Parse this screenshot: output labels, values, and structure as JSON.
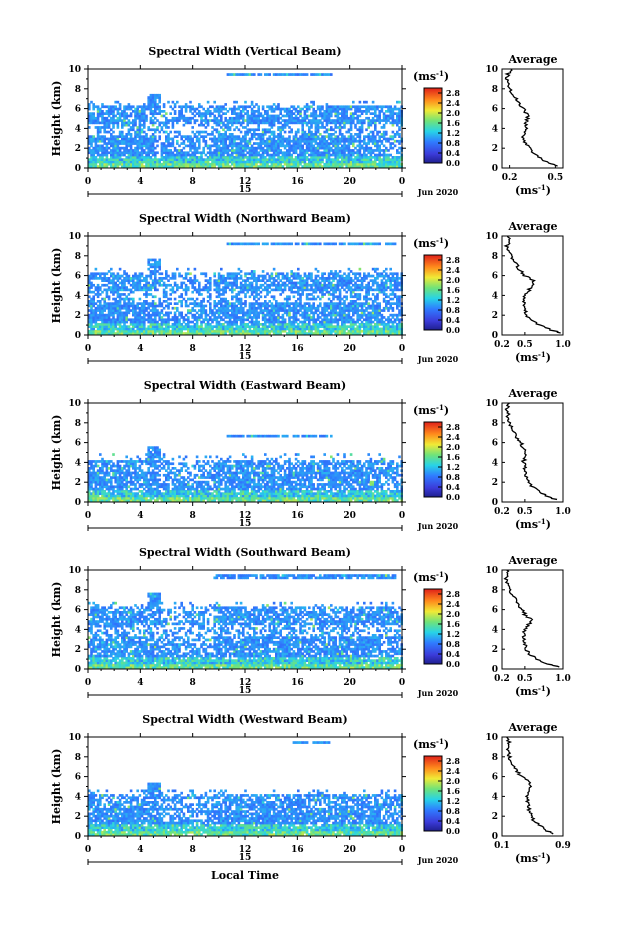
{
  "figure": {
    "xlabel": "Local Time",
    "date_label": "Jun 2020",
    "colorbar_unit_prefix": "(ms",
    "colorbar_unit_exp": "-1",
    "colorbar_unit_suffix": ")",
    "colorbar_ticks": [
      "2.8",
      "2.4",
      "2.0",
      "1.6",
      "1.2",
      "0.8",
      "0.4",
      "0.0"
    ],
    "profile_title": "Average",
    "profile_xlabel_prefix": "(ms",
    "profile_xlabel_exp": "-1",
    "profile_xlabel_suffix": ")"
  },
  "chart_data": [
    {
      "type": "heatmap",
      "title": "Spectral Width (Vertical Beam)",
      "xlabel": "Local Time",
      "ylabel": "Height (km)",
      "xticks": [
        "0",
        "4",
        "8",
        "12",
        "16",
        "20",
        "0"
      ],
      "yticks": [
        "0",
        "2",
        "4",
        "6",
        "8",
        "10"
      ],
      "xlim": [
        0,
        24
      ],
      "ylim": [
        0,
        10
      ],
      "day_label": "15",
      "date_label": "Jun 2020",
      "colorbar": {
        "min": 0.0,
        "max": 3.0,
        "ticks": [
          0.0,
          0.4,
          0.8,
          1.2,
          1.6,
          2.0,
          2.4,
          2.8
        ],
        "unit": "ms-1"
      },
      "cloud_top_km": 6.1,
      "upper_layer": {
        "start_h": 10.5,
        "end_h": 18.5,
        "height_km": 9.4
      },
      "average_profile": {
        "title": "Average",
        "xticks": [
          "0.2",
          "0.5"
        ],
        "xlim": [
          0.15,
          0.55
        ],
        "ylim": [
          0,
          10
        ],
        "yticks": [
          "0",
          "2",
          "4",
          "6",
          "8",
          "10"
        ],
        "height_km": [
          0.2,
          0.5,
          1.0,
          1.5,
          2.0,
          2.5,
          3.0,
          3.5,
          4.0,
          4.5,
          5.0,
          5.5,
          6.0,
          6.5,
          7.0,
          7.5,
          8.0,
          8.5,
          9.0,
          9.5,
          10.0
        ],
        "value": [
          0.52,
          0.46,
          0.4,
          0.36,
          0.33,
          0.3,
          0.29,
          0.3,
          0.31,
          0.3,
          0.32,
          0.31,
          0.29,
          0.26,
          0.24,
          0.22,
          0.2,
          0.19,
          0.18,
          0.19,
          0.21
        ]
      }
    },
    {
      "type": "heatmap",
      "title": "Spectral Width (Northward Beam)",
      "xlabel": "Local Time",
      "ylabel": "Height (km)",
      "xticks": [
        "0",
        "4",
        "8",
        "12",
        "16",
        "20",
        "0"
      ],
      "yticks": [
        "0",
        "2",
        "4",
        "6",
        "8",
        "10"
      ],
      "xlim": [
        0,
        24
      ],
      "ylim": [
        0,
        10
      ],
      "day_label": "15",
      "date_label": "Jun 2020",
      "colorbar": {
        "min": 0.0,
        "max": 3.0,
        "ticks": [
          0.0,
          0.4,
          0.8,
          1.2,
          1.6,
          2.0,
          2.4,
          2.8
        ],
        "unit": "ms-1"
      },
      "cloud_top_km": 6.2,
      "upper_layer": {
        "start_h": 10.5,
        "end_h": 23.5,
        "height_km": 9.1
      },
      "average_profile": {
        "title": "Average",
        "xticks": [
          "0.2",
          "0.5",
          "1.0"
        ],
        "xlim": [
          0.2,
          1.0
        ],
        "ylim": [
          0,
          10
        ],
        "yticks": [
          "0",
          "2",
          "4",
          "6",
          "8",
          "10"
        ],
        "height_km": [
          0.2,
          0.5,
          1.0,
          1.5,
          2.0,
          2.5,
          3.0,
          3.5,
          4.0,
          4.5,
          5.0,
          5.5,
          6.0,
          6.5,
          7.0,
          7.5,
          8.0,
          8.5,
          9.0,
          9.5,
          10.0
        ],
        "value": [
          0.98,
          0.85,
          0.7,
          0.58,
          0.52,
          0.5,
          0.49,
          0.48,
          0.5,
          0.55,
          0.6,
          0.62,
          0.5,
          0.44,
          0.4,
          0.36,
          0.32,
          0.28,
          0.26,
          0.3,
          0.27
        ]
      }
    },
    {
      "type": "heatmap",
      "title": "Spectral Width (Eastward Beam)",
      "xlabel": "Local Time",
      "ylabel": "Height (km)",
      "xticks": [
        "0",
        "4",
        "8",
        "12",
        "16",
        "20",
        "0"
      ],
      "yticks": [
        "0",
        "2",
        "4",
        "6",
        "8",
        "10"
      ],
      "xlim": [
        0,
        24
      ],
      "ylim": [
        0,
        10
      ],
      "day_label": "15",
      "date_label": "Jun 2020",
      "colorbar": {
        "min": 0.0,
        "max": 3.0,
        "ticks": [
          0.0,
          0.4,
          0.8,
          1.2,
          1.6,
          2.0,
          2.4,
          2.8
        ],
        "unit": "ms-1"
      },
      "cloud_top_km": 4.2,
      "upper_layer": {
        "start_h": 10.5,
        "end_h": 18.5,
        "height_km": 6.5
      },
      "average_profile": {
        "title": "Average",
        "xticks": [
          "0.2",
          "0.5",
          "1.0"
        ],
        "xlim": [
          0.2,
          1.0
        ],
        "ylim": [
          0,
          10
        ],
        "yticks": [
          "0",
          "2",
          "4",
          "6",
          "8",
          "10"
        ],
        "height_km": [
          0.2,
          0.5,
          1.0,
          1.5,
          2.0,
          2.5,
          3.0,
          3.5,
          4.0,
          4.5,
          5.0,
          5.5,
          6.0,
          6.5,
          7.0,
          7.5,
          8.0,
          8.5,
          9.0,
          9.5,
          10.0
        ],
        "value": [
          0.92,
          0.82,
          0.7,
          0.6,
          0.55,
          0.52,
          0.5,
          0.5,
          0.48,
          0.5,
          0.52,
          0.48,
          0.45,
          0.4,
          0.36,
          0.33,
          0.3,
          0.27,
          0.29,
          0.26,
          0.3
        ]
      }
    },
    {
      "type": "heatmap",
      "title": "Spectral Width (Southward Beam)",
      "xlabel": "Local Time",
      "ylabel": "Height (km)",
      "xticks": [
        "0",
        "4",
        "8",
        "12",
        "16",
        "20",
        "0"
      ],
      "yticks": [
        "0",
        "2",
        "4",
        "6",
        "8",
        "10"
      ],
      "xlim": [
        0,
        24
      ],
      "ylim": [
        0,
        10
      ],
      "day_label": "15",
      "date_label": "Jun 2020",
      "colorbar": {
        "min": 0.0,
        "max": 3.0,
        "ticks": [
          0.0,
          0.4,
          0.8,
          1.2,
          1.6,
          2.0,
          2.4,
          2.8
        ],
        "unit": "ms-1"
      },
      "cloud_top_km": 6.2,
      "upper_layer": {
        "start_h": 9.5,
        "end_h": 23.5,
        "height_km": 9.2
      },
      "average_profile": {
        "title": "Average",
        "xticks": [
          "0.2",
          "0.5",
          "1.0"
        ],
        "xlim": [
          0.2,
          1.0
        ],
        "ylim": [
          0,
          10
        ],
        "yticks": [
          "0",
          "2",
          "4",
          "6",
          "8",
          "10"
        ],
        "height_km": [
          0.2,
          0.5,
          1.0,
          1.5,
          2.0,
          2.5,
          3.0,
          3.5,
          4.0,
          4.5,
          5.0,
          5.5,
          6.0,
          6.5,
          7.0,
          7.5,
          8.0,
          8.5,
          9.0,
          9.5,
          10.0
        ],
        "value": [
          0.96,
          0.8,
          0.66,
          0.56,
          0.52,
          0.5,
          0.5,
          0.48,
          0.5,
          0.55,
          0.58,
          0.5,
          0.46,
          0.42,
          0.38,
          0.34,
          0.3,
          0.27,
          0.25,
          0.28,
          0.26
        ]
      }
    },
    {
      "type": "heatmap",
      "title": "Spectral Width (Westward Beam)",
      "xlabel": "Local Time",
      "ylabel": "Height (km)",
      "xticks": [
        "0",
        "4",
        "8",
        "12",
        "16",
        "20",
        "0"
      ],
      "yticks": [
        "0",
        "2",
        "4",
        "6",
        "8",
        "10"
      ],
      "xlim": [
        0,
        24
      ],
      "ylim": [
        0,
        10
      ],
      "day_label": "15",
      "date_label": "Jun 2020",
      "colorbar": {
        "min": 0.0,
        "max": 3.0,
        "ticks": [
          0.0,
          0.4,
          0.8,
          1.2,
          1.6,
          2.0,
          2.4,
          2.8
        ],
        "unit": "ms-1"
      },
      "cloud_top_km": 4.0,
      "upper_layer": {
        "start_h": 15.5,
        "end_h": 18.5,
        "height_km": 9.4
      },
      "average_profile": {
        "title": "Average",
        "xticks": [
          "0.1",
          "0.9"
        ],
        "xlim": [
          0.1,
          0.9
        ],
        "ylim": [
          0,
          10
        ],
        "yticks": [
          "0",
          "2",
          "4",
          "6",
          "8",
          "10"
        ],
        "height_km": [
          0.2,
          0.5,
          1.0,
          1.5,
          2.0,
          2.5,
          3.0,
          3.5,
          4.0,
          4.5,
          5.0,
          5.5,
          6.0,
          6.5,
          7.0,
          7.5,
          8.0,
          8.5,
          9.0,
          9.5,
          10.0
        ],
        "value": [
          0.78,
          0.7,
          0.6,
          0.52,
          0.48,
          0.46,
          0.45,
          0.44,
          0.43,
          0.45,
          0.48,
          0.44,
          0.36,
          0.3,
          0.26,
          0.22,
          0.2,
          0.18,
          0.17,
          0.2,
          0.16
        ]
      }
    }
  ]
}
